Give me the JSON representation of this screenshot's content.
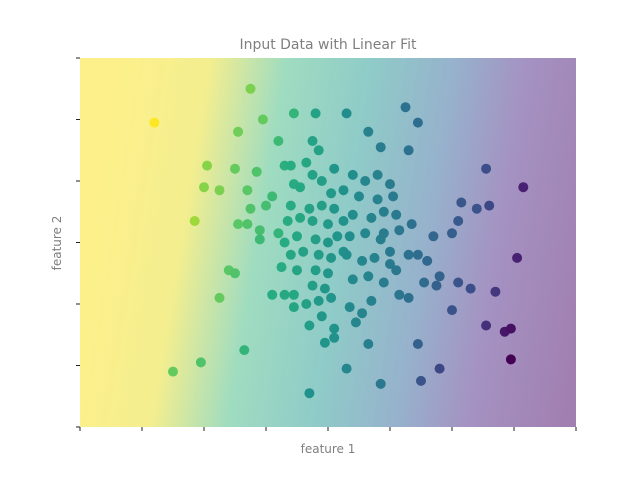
{
  "chart_data": {
    "type": "scatter",
    "title": "Input Data with Linear Fit",
    "xlabel": "feature 1",
    "ylabel": "feature 2",
    "xlim": [
      -4,
      4
    ],
    "ylim": [
      -3,
      3
    ],
    "grid": false,
    "legend": "none",
    "colormap": "viridis",
    "background": "linear-fit gradient, yellow (high) at left to purple (low) at right",
    "x_ticks": 9,
    "y_ticks": 7,
    "points": [
      {
        "x": -2.8,
        "y": 1.95,
        "v": 1.0
      },
      {
        "x": -1.25,
        "y": 2.5,
        "v": 0.8
      },
      {
        "x": -1.05,
        "y": 2.0,
        "v": 0.76
      },
      {
        "x": -1.45,
        "y": 1.8,
        "v": 0.78
      },
      {
        "x": -0.55,
        "y": 2.1,
        "v": 0.66
      },
      {
        "x": -0.8,
        "y": 1.65,
        "v": 0.68
      },
      {
        "x": -1.5,
        "y": 1.2,
        "v": 0.76
      },
      {
        "x": -1.15,
        "y": 1.15,
        "v": 0.72
      },
      {
        "x": -1.95,
        "y": 1.25,
        "v": 0.82
      },
      {
        "x": -2.0,
        "y": 0.9,
        "v": 0.82
      },
      {
        "x": -1.75,
        "y": 0.85,
        "v": 0.8
      },
      {
        "x": -1.3,
        "y": 0.85,
        "v": 0.74
      },
      {
        "x": -2.15,
        "y": 0.35,
        "v": 0.86
      },
      {
        "x": -1.3,
        "y": 0.3,
        "v": 0.72
      },
      {
        "x": -1.45,
        "y": 0.3,
        "v": 0.74
      },
      {
        "x": -1.1,
        "y": 0.2,
        "v": 0.7
      },
      {
        "x": -1.1,
        "y": 0.05,
        "v": 0.68
      },
      {
        "x": -1.25,
        "y": 0.55,
        "v": 0.72
      },
      {
        "x": -1.0,
        "y": 0.6,
        "v": 0.7
      },
      {
        "x": -0.9,
        "y": 0.75,
        "v": 0.68
      },
      {
        "x": -0.8,
        "y": 0.15,
        "v": 0.66
      },
      {
        "x": -1.6,
        "y": -0.45,
        "v": 0.74
      },
      {
        "x": -1.5,
        "y": -0.5,
        "v": 0.72
      },
      {
        "x": -1.75,
        "y": -0.9,
        "v": 0.76
      },
      {
        "x": -1.35,
        "y": -1.75,
        "v": 0.66
      },
      {
        "x": -2.5,
        "y": -2.1,
        "v": 0.76
      },
      {
        "x": -2.05,
        "y": -1.95,
        "v": 0.72
      },
      {
        "x": -0.2,
        "y": 2.1,
        "v": 0.58
      },
      {
        "x": -0.7,
        "y": 1.25,
        "v": 0.64
      },
      {
        "x": -0.6,
        "y": 1.25,
        "v": 0.63
      },
      {
        "x": -0.35,
        "y": 1.3,
        "v": 0.6
      },
      {
        "x": -0.15,
        "y": 1.5,
        "v": 0.58
      },
      {
        "x": -0.25,
        "y": 1.65,
        "v": 0.58
      },
      {
        "x": -0.55,
        "y": 0.95,
        "v": 0.62
      },
      {
        "x": -0.45,
        "y": 0.9,
        "v": 0.61
      },
      {
        "x": -0.25,
        "y": 1.1,
        "v": 0.58
      },
      {
        "x": -0.1,
        "y": 1.0,
        "v": 0.56
      },
      {
        "x": 0.05,
        "y": 0.8,
        "v": 0.54
      },
      {
        "x": -0.6,
        "y": 0.6,
        "v": 0.62
      },
      {
        "x": -0.3,
        "y": 0.55,
        "v": 0.58
      },
      {
        "x": -0.1,
        "y": 0.6,
        "v": 0.56
      },
      {
        "x": 0.1,
        "y": 0.55,
        "v": 0.53
      },
      {
        "x": -0.65,
        "y": 0.35,
        "v": 0.62
      },
      {
        "x": -0.45,
        "y": 0.4,
        "v": 0.6
      },
      {
        "x": -0.25,
        "y": 0.35,
        "v": 0.57
      },
      {
        "x": 0.0,
        "y": 0.3,
        "v": 0.54
      },
      {
        "x": 0.25,
        "y": 0.35,
        "v": 0.51
      },
      {
        "x": -0.7,
        "y": 0.0,
        "v": 0.62
      },
      {
        "x": -0.5,
        "y": 0.1,
        "v": 0.6
      },
      {
        "x": -0.2,
        "y": 0.05,
        "v": 0.56
      },
      {
        "x": 0.0,
        "y": 0.0,
        "v": 0.53
      },
      {
        "x": 0.15,
        "y": 0.1,
        "v": 0.52
      },
      {
        "x": -0.6,
        "y": -0.2,
        "v": 0.6
      },
      {
        "x": -0.4,
        "y": -0.15,
        "v": 0.58
      },
      {
        "x": -0.15,
        "y": -0.2,
        "v": 0.55
      },
      {
        "x": 0.05,
        "y": -0.25,
        "v": 0.53
      },
      {
        "x": 0.25,
        "y": -0.15,
        "v": 0.5
      },
      {
        "x": -0.75,
        "y": -0.4,
        "v": 0.62
      },
      {
        "x": -0.5,
        "y": -0.45,
        "v": 0.59
      },
      {
        "x": -0.2,
        "y": -0.45,
        "v": 0.56
      },
      {
        "x": 0.0,
        "y": -0.5,
        "v": 0.53
      },
      {
        "x": -0.9,
        "y": -0.85,
        "v": 0.62
      },
      {
        "x": -0.7,
        "y": -0.85,
        "v": 0.61
      },
      {
        "x": -0.55,
        "y": -0.85,
        "v": 0.6
      },
      {
        "x": -0.25,
        "y": -0.7,
        "v": 0.56
      },
      {
        "x": -0.05,
        "y": -0.75,
        "v": 0.53
      },
      {
        "x": -0.55,
        "y": -1.05,
        "v": 0.59
      },
      {
        "x": -0.35,
        "y": -1.0,
        "v": 0.57
      },
      {
        "x": -0.15,
        "y": -0.95,
        "v": 0.54
      },
      {
        "x": 0.05,
        "y": -0.9,
        "v": 0.52
      },
      {
        "x": -0.3,
        "y": -1.35,
        "v": 0.55
      },
      {
        "x": -0.1,
        "y": -1.2,
        "v": 0.53
      },
      {
        "x": 0.1,
        "y": -1.4,
        "v": 0.51
      },
      {
        "x": -0.05,
        "y": -1.63,
        "v": 0.52
      },
      {
        "x": 0.1,
        "y": -1.55,
        "v": 0.5
      },
      {
        "x": -0.3,
        "y": -2.45,
        "v": 0.5
      },
      {
        "x": 0.3,
        "y": 2.1,
        "v": 0.48
      },
      {
        "x": 0.65,
        "y": 1.8,
        "v": 0.44
      },
      {
        "x": 0.85,
        "y": 1.55,
        "v": 0.42
      },
      {
        "x": 1.25,
        "y": 2.2,
        "v": 0.38
      },
      {
        "x": 1.45,
        "y": 1.95,
        "v": 0.36
      },
      {
        "x": 1.3,
        "y": 1.5,
        "v": 0.38
      },
      {
        "x": 0.1,
        "y": 1.2,
        "v": 0.52
      },
      {
        "x": 0.4,
        "y": 1.1,
        "v": 0.49
      },
      {
        "x": 0.6,
        "y": 1.0,
        "v": 0.46
      },
      {
        "x": 0.8,
        "y": 1.1,
        "v": 0.44
      },
      {
        "x": 1.0,
        "y": 0.95,
        "v": 0.42
      },
      {
        "x": 0.25,
        "y": 0.85,
        "v": 0.5
      },
      {
        "x": 0.5,
        "y": 0.75,
        "v": 0.47
      },
      {
        "x": 0.8,
        "y": 0.7,
        "v": 0.44
      },
      {
        "x": 0.4,
        "y": 0.45,
        "v": 0.48
      },
      {
        "x": 0.7,
        "y": 0.4,
        "v": 0.45
      },
      {
        "x": 0.9,
        "y": 0.5,
        "v": 0.43
      },
      {
        "x": 1.1,
        "y": 0.45,
        "v": 0.41
      },
      {
        "x": 0.35,
        "y": 0.1,
        "v": 0.49
      },
      {
        "x": 0.6,
        "y": 0.15,
        "v": 0.46
      },
      {
        "x": 0.85,
        "y": 0.05,
        "v": 0.43
      },
      {
        "x": 1.15,
        "y": 0.2,
        "v": 0.4
      },
      {
        "x": 0.3,
        "y": -0.2,
        "v": 0.49
      },
      {
        "x": 0.55,
        "y": -0.3,
        "v": 0.46
      },
      {
        "x": 0.75,
        "y": -0.25,
        "v": 0.44
      },
      {
        "x": 1.0,
        "y": -0.35,
        "v": 0.41
      },
      {
        "x": 0.4,
        "y": -0.6,
        "v": 0.47
      },
      {
        "x": 0.65,
        "y": -0.55,
        "v": 0.45
      },
      {
        "x": 0.9,
        "y": -0.65,
        "v": 0.42
      },
      {
        "x": 0.35,
        "y": -1.05,
        "v": 0.47
      },
      {
        "x": 0.55,
        "y": -1.15,
        "v": 0.45
      },
      {
        "x": 0.7,
        "y": -0.95,
        "v": 0.44
      },
      {
        "x": 0.45,
        "y": -1.3,
        "v": 0.46
      },
      {
        "x": 0.3,
        "y": -2.05,
        "v": 0.46
      },
      {
        "x": 0.65,
        "y": -1.65,
        "v": 0.43
      },
      {
        "x": 0.85,
        "y": -2.3,
        "v": 0.4
      },
      {
        "x": 1.3,
        "y": -0.2,
        "v": 0.38
      },
      {
        "x": 1.3,
        "y": -0.9,
        "v": 0.37
      },
      {
        "x": 1.35,
        "y": 0.3,
        "v": 0.37
      },
      {
        "x": 1.7,
        "y": 0.1,
        "v": 0.33
      },
      {
        "x": 1.55,
        "y": -0.65,
        "v": 0.35
      },
      {
        "x": 1.45,
        "y": -0.2,
        "v": 0.36
      },
      {
        "x": 1.1,
        "y": -0.45,
        "v": 0.4
      },
      {
        "x": 1.05,
        "y": 0.75,
        "v": 0.41
      },
      {
        "x": 1.15,
        "y": -0.85,
        "v": 0.39
      },
      {
        "x": 0.9,
        "y": 0.15,
        "v": 0.42
      },
      {
        "x": 1.0,
        "y": -0.15,
        "v": 0.41
      },
      {
        "x": 1.6,
        "y": -0.3,
        "v": 0.34
      },
      {
        "x": 1.8,
        "y": -0.55,
        "v": 0.32
      },
      {
        "x": 2.0,
        "y": 0.15,
        "v": 0.3
      },
      {
        "x": 2.1,
        "y": 0.35,
        "v": 0.28
      },
      {
        "x": 2.15,
        "y": 0.65,
        "v": 0.27
      },
      {
        "x": 2.4,
        "y": 0.55,
        "v": 0.25
      },
      {
        "x": 2.6,
        "y": 0.6,
        "v": 0.22
      },
      {
        "x": 2.55,
        "y": 1.2,
        "v": 0.24
      },
      {
        "x": 2.1,
        "y": -0.65,
        "v": 0.26
      },
      {
        "x": 2.3,
        "y": -0.75,
        "v": 0.24
      },
      {
        "x": 1.75,
        "y": -0.7,
        "v": 0.31
      },
      {
        "x": 2.0,
        "y": -1.1,
        "v": 0.26
      },
      {
        "x": 1.45,
        "y": -1.65,
        "v": 0.31
      },
      {
        "x": 2.7,
        "y": -0.8,
        "v": 0.18
      },
      {
        "x": 3.05,
        "y": -0.25,
        "v": 0.12
      },
      {
        "x": 3.15,
        "y": 0.9,
        "v": 0.12
      },
      {
        "x": 1.8,
        "y": -2.05,
        "v": 0.22
      },
      {
        "x": 1.5,
        "y": -2.25,
        "v": 0.26
      },
      {
        "x": 2.55,
        "y": -1.35,
        "v": 0.16
      },
      {
        "x": 2.85,
        "y": -1.45,
        "v": 0.08
      },
      {
        "x": 2.95,
        "y": -1.4,
        "v": 0.06
      },
      {
        "x": 2.95,
        "y": -1.9,
        "v": 0.0
      }
    ]
  }
}
